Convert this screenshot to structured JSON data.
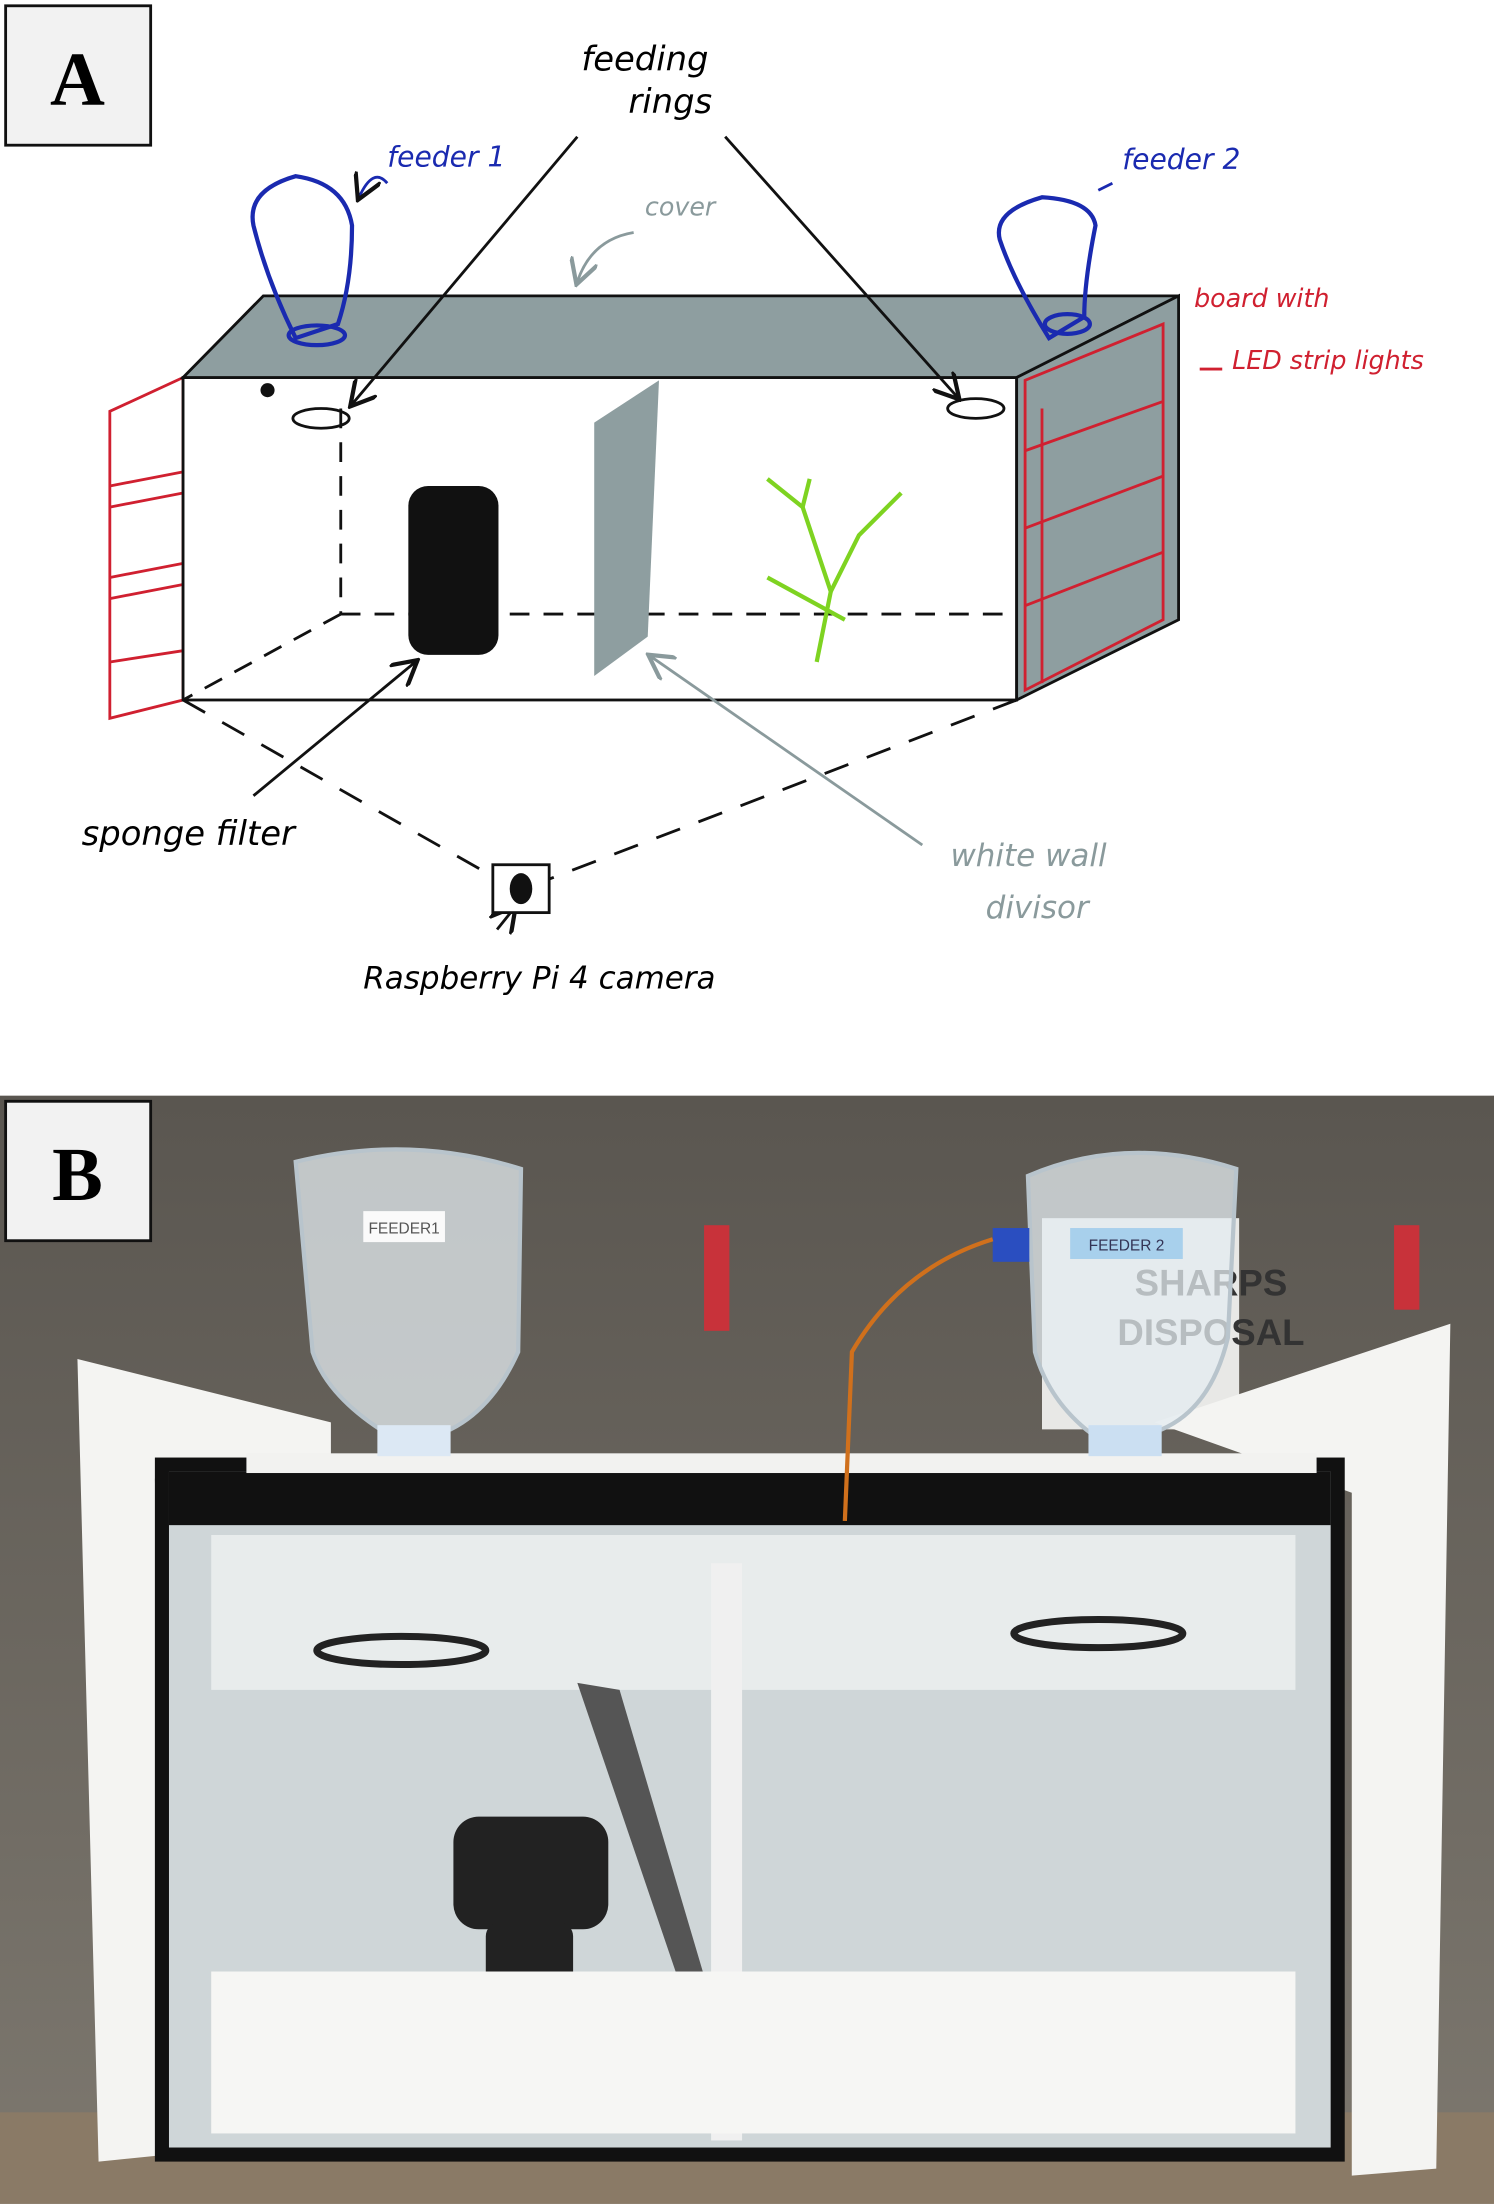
{
  "panel_a": {
    "label": "A",
    "feeding_rings": [
      "feeding",
      "rings"
    ],
    "feeder_1": "feeder 1",
    "feeder_2": "feeder 2",
    "cover": "cover",
    "board": [
      "board with",
      "LED strip lights"
    ],
    "sponge_filter": "sponge filter",
    "divisor": [
      "white wall",
      "divisor"
    ],
    "camera": "Raspberry Pi 4 camera"
  },
  "panel_b": {
    "label": "B",
    "feeder_1_tag": "FEEDER1",
    "feeder_2_tag": "FEEDER 2",
    "sign": [
      "SHARPS",
      "DISPOSAL"
    ]
  }
}
